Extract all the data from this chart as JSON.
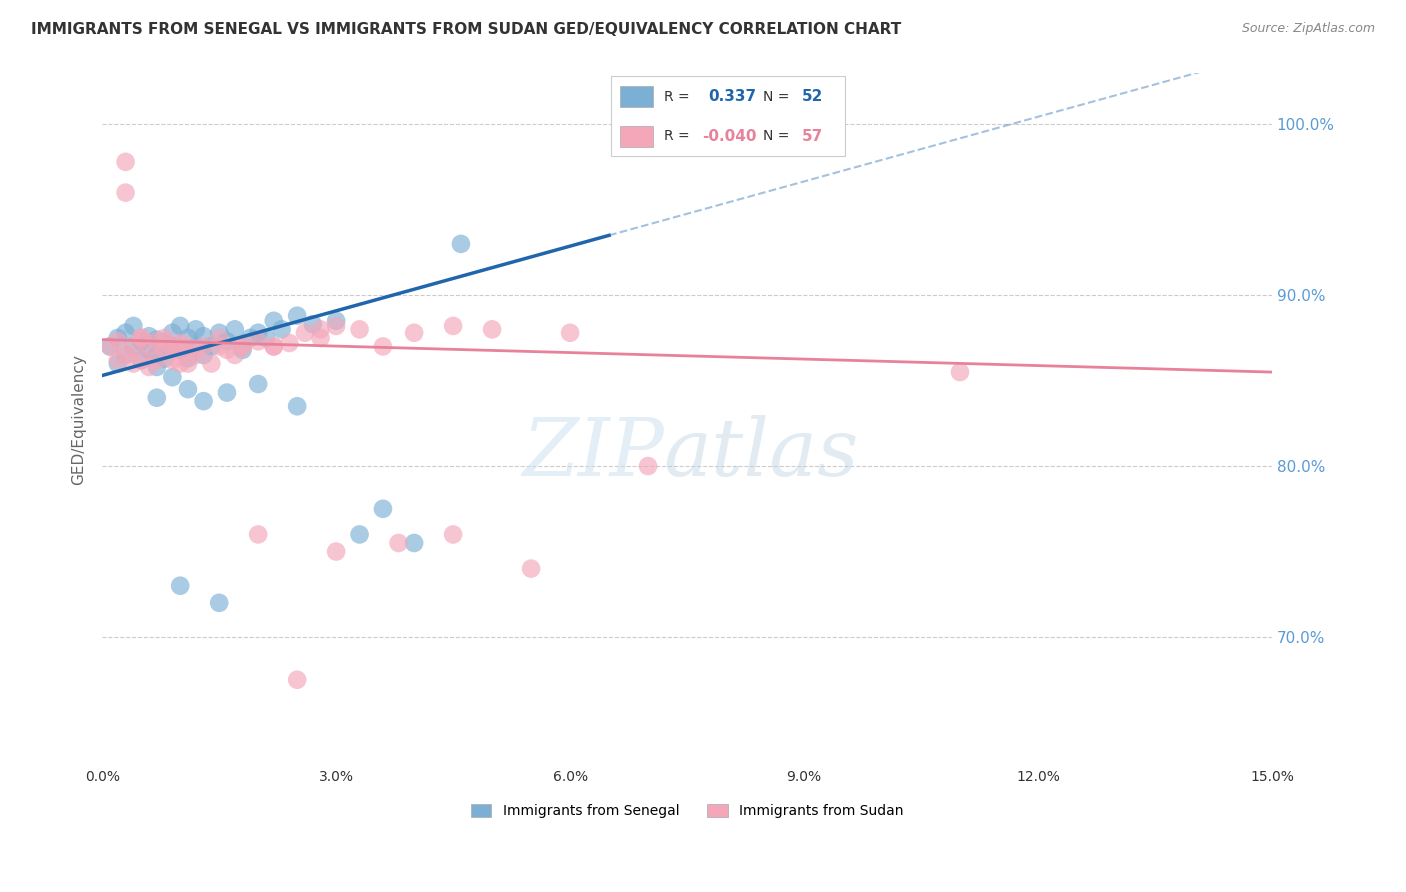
{
  "title": "IMMIGRANTS FROM SENEGAL VS IMMIGRANTS FROM SUDAN GED/EQUIVALENCY CORRELATION CHART",
  "source": "Source: ZipAtlas.com",
  "ylabel": "GED/Equivalency",
  "ytick_labels": [
    "70.0%",
    "80.0%",
    "90.0%",
    "100.0%"
  ],
  "ytick_values": [
    0.7,
    0.8,
    0.9,
    1.0
  ],
  "xmin": 0.0,
  "xmax": 0.15,
  "ymin": 0.625,
  "ymax": 1.03,
  "legend_r_senegal": "0.337",
  "legend_n_senegal": "52",
  "legend_r_sudan": "-0.040",
  "legend_n_sudan": "57",
  "color_senegal": "#7bafd4",
  "color_sudan": "#f4a7b9",
  "color_senegal_line": "#2166ac",
  "color_sudan_line": "#e8829a",
  "senegal_line_x0": 0.0,
  "senegal_line_y0": 0.853,
  "senegal_line_x1": 0.065,
  "senegal_line_y1": 0.935,
  "sudan_line_x0": 0.0,
  "sudan_line_y0": 0.874,
  "sudan_line_x1": 0.15,
  "sudan_line_y1": 0.855,
  "senegal_pts_x": [
    0.001,
    0.002,
    0.002,
    0.003,
    0.003,
    0.004,
    0.004,
    0.005,
    0.005,
    0.006,
    0.006,
    0.007,
    0.007,
    0.007,
    0.008,
    0.008,
    0.009,
    0.009,
    0.01,
    0.01,
    0.011,
    0.011,
    0.012,
    0.012,
    0.013,
    0.013,
    0.014,
    0.015,
    0.016,
    0.017,
    0.018,
    0.019,
    0.02,
    0.021,
    0.022,
    0.023,
    0.025,
    0.027,
    0.03,
    0.033,
    0.036,
    0.04,
    0.007,
    0.009,
    0.011,
    0.013,
    0.016,
    0.02,
    0.025,
    0.01,
    0.015,
    0.046
  ],
  "senegal_pts_y": [
    0.87,
    0.875,
    0.86,
    0.878,
    0.865,
    0.882,
    0.87,
    0.873,
    0.862,
    0.876,
    0.868,
    0.874,
    0.865,
    0.858,
    0.872,
    0.863,
    0.87,
    0.878,
    0.868,
    0.882,
    0.875,
    0.863,
    0.88,
    0.87,
    0.876,
    0.865,
    0.87,
    0.878,
    0.873,
    0.88,
    0.868,
    0.875,
    0.878,
    0.875,
    0.885,
    0.88,
    0.888,
    0.883,
    0.885,
    0.76,
    0.775,
    0.755,
    0.84,
    0.852,
    0.845,
    0.838,
    0.843,
    0.848,
    0.835,
    0.73,
    0.72,
    0.93
  ],
  "sudan_pts_x": [
    0.001,
    0.002,
    0.002,
    0.003,
    0.003,
    0.004,
    0.004,
    0.005,
    0.005,
    0.006,
    0.006,
    0.007,
    0.007,
    0.008,
    0.008,
    0.009,
    0.009,
    0.01,
    0.01,
    0.011,
    0.011,
    0.012,
    0.013,
    0.014,
    0.015,
    0.016,
    0.017,
    0.018,
    0.02,
    0.022,
    0.024,
    0.026,
    0.028,
    0.03,
    0.033,
    0.036,
    0.04,
    0.045,
    0.05,
    0.06,
    0.003,
    0.005,
    0.008,
    0.01,
    0.012,
    0.015,
    0.018,
    0.022,
    0.028,
    0.038,
    0.055,
    0.07,
    0.11,
    0.045,
    0.03,
    0.02,
    0.025
  ],
  "sudan_pts_y": [
    0.87,
    0.873,
    0.862,
    0.978,
    0.865,
    0.87,
    0.86,
    0.875,
    0.862,
    0.87,
    0.858,
    0.873,
    0.862,
    0.868,
    0.872,
    0.862,
    0.87,
    0.86,
    0.872,
    0.86,
    0.87,
    0.868,
    0.87,
    0.86,
    0.875,
    0.868,
    0.865,
    0.87,
    0.873,
    0.87,
    0.872,
    0.878,
    0.88,
    0.882,
    0.88,
    0.87,
    0.878,
    0.882,
    0.88,
    0.878,
    0.96,
    0.875,
    0.875,
    0.87,
    0.865,
    0.87,
    0.87,
    0.87,
    0.875,
    0.755,
    0.74,
    0.8,
    0.855,
    0.76,
    0.75,
    0.76,
    0.675
  ]
}
